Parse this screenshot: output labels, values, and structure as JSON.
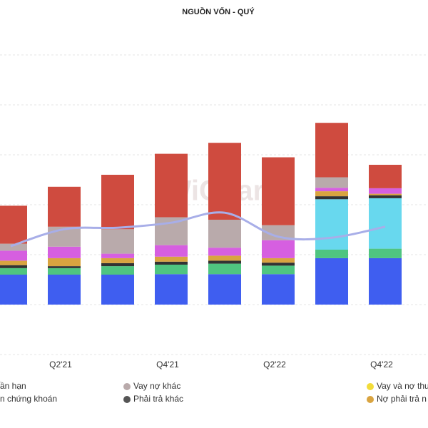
{
  "chart_data": {
    "type": "bar",
    "title": "NGUỒN VỐN - QUÝ",
    "watermark": "WiChart",
    "categories": [
      null,
      "Q2'21",
      null,
      "Q4'21",
      null,
      "Q2'22",
      null,
      "Q4'22"
    ],
    "ylim": [
      -1,
      5
    ],
    "yticks": [
      -1,
      0,
      1,
      2,
      3,
      4,
      5
    ],
    "grid": true,
    "series": [
      {
        "color": "#3f5ef0",
        "values": [
          0.6,
          0.6,
          0.6,
          0.61,
          0.61,
          0.61,
          0.93,
          0.93
        ]
      },
      {
        "color": "#4fc580",
        "values": [
          0.13,
          0.13,
          0.17,
          0.19,
          0.21,
          0.17,
          0.17,
          0.19
        ]
      },
      {
        "color": "#68d8ee",
        "values": [
          0,
          0,
          0,
          0,
          0,
          0,
          1.01,
          1.01
        ]
      },
      {
        "color": "#333333",
        "values": [
          0.06,
          0.04,
          0.06,
          0.06,
          0.06,
          0.06,
          0.06,
          0.06
        ]
      },
      {
        "color": "#d9a440",
        "values": [
          0.09,
          0.16,
          0.1,
          0.1,
          0.1,
          0.09,
          0.1,
          0.03
        ]
      },
      {
        "color": "#d65fe0",
        "values": [
          0.2,
          0.23,
          0.09,
          0.23,
          0.16,
          0.36,
          0.07,
          0.11
        ]
      },
      {
        "color": "#b9aaab",
        "values": [
          0.14,
          0.4,
          0.49,
          0.56,
          0.56,
          0.3,
          0.21,
          0
        ]
      },
      {
        "color": "#cf4b3f",
        "values": [
          0.76,
          0.8,
          1.09,
          1.27,
          1.54,
          1.36,
          1.09,
          0.47
        ]
      }
    ],
    "line": {
      "color": "#a8aee8",
      "values": [
        1.17,
        1.51,
        1.54,
        1.64,
        1.84,
        1.36,
        1.34,
        1.56
      ]
    },
    "legend": [
      {
        "label": "ần hạn",
        "color": null
      },
      {
        "label": "Vay nợ khác",
        "color": "#b9aaab"
      },
      {
        "label": "Vay và nợ thu",
        "color": "#f2dc3a"
      },
      {
        "label": "n chứng khoán",
        "color": null
      },
      {
        "label": "Phải trả khác",
        "color": "#555555"
      },
      {
        "label": "Nợ phải trả n",
        "color": "#d9a440"
      }
    ]
  }
}
